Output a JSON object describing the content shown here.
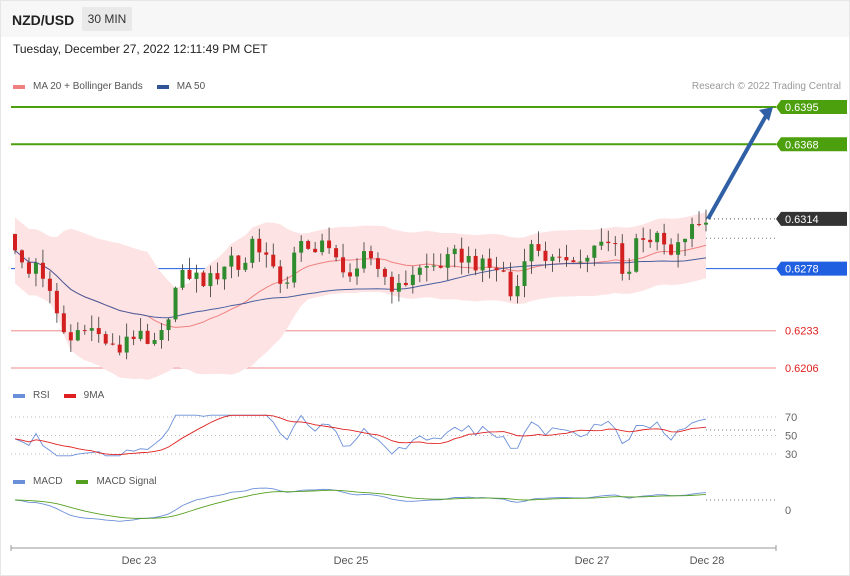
{
  "header": {
    "symbol": "NZD/USD",
    "timeframe": "30 MIN"
  },
  "datetime": "Tuesday, December 27, 2022 12:11:49 PM CET",
  "copyright": "Research © 2022 Trading Central",
  "legends": {
    "price": [
      {
        "label": "MA 20 + Bollinger Bands",
        "color": "#f08080"
      },
      {
        "label": "MA 50",
        "color": "#2f5597"
      }
    ],
    "rsi": [
      {
        "label": "RSI",
        "color": "#6b8fd8"
      },
      {
        "label": "9MA",
        "color": "#e02020"
      }
    ],
    "macd": [
      {
        "label": "MACD",
        "color": "#6b8fd8"
      },
      {
        "label": "MACD Signal",
        "color": "#55a020"
      }
    ]
  },
  "chart_data": {
    "type": "candlestick",
    "x_ticks": [
      "Dec 23",
      "Dec 25",
      "Dec 27",
      "Dec 28"
    ],
    "levels": [
      {
        "value": "0.6395",
        "type": "resistance",
        "color": "#4ca00e"
      },
      {
        "value": "0.6368",
        "type": "resistance",
        "color": "#4ca00e"
      },
      {
        "value": "0.6314",
        "type": "last",
        "color": "#333333"
      },
      {
        "value": "0.6278",
        "type": "pivot",
        "color": "#1f5fe0"
      },
      {
        "value": "0.6233",
        "type": "support",
        "color": "#e03030"
      },
      {
        "value": "0.6206",
        "type": "support",
        "color": "#e03030"
      }
    ],
    "forecast_target": "0.6395",
    "close_path": [
      0.6295,
      0.627,
      0.6285,
      0.626,
      0.6235,
      0.6225,
      0.624,
      0.6232,
      0.6225,
      0.6215,
      0.6232,
      0.6228,
      0.6218,
      0.623,
      0.626,
      0.6275,
      0.6272,
      0.6268,
      0.6275,
      0.6288,
      0.6275,
      0.63,
      0.629,
      0.627,
      0.627,
      0.6295,
      0.629,
      0.63,
      0.6285,
      0.628,
      0.6268,
      0.629,
      0.628,
      0.6268,
      0.6262,
      0.6275,
      0.6278,
      0.628,
      0.6282,
      0.6288,
      0.6285,
      0.628,
      0.6278,
      0.6278,
      0.6252,
      0.629,
      0.6295,
      0.6285,
      0.628,
      0.629,
      0.6282,
      0.6292,
      0.6295,
      0.6295,
      0.6268,
      0.6305,
      0.63,
      0.6298,
      0.6285,
      0.63,
      0.6308,
      0.6314
    ],
    "rsi": {
      "levels": [
        "70",
        "50",
        "30"
      ],
      "last": 56
    },
    "macd": {
      "zero_label": "0"
    }
  }
}
